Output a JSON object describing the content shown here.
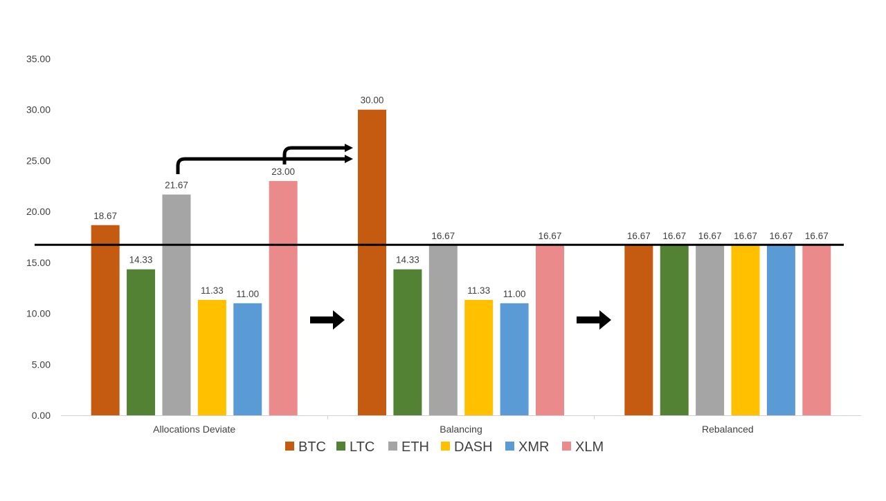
{
  "chart_data": {
    "type": "bar",
    "categories": [
      "Allocations Deviate",
      "Balancing",
      "Rebalanced"
    ],
    "series": [
      {
        "name": "BTC",
        "color": "#C55A11",
        "values": [
          18.67,
          30.0,
          16.67
        ]
      },
      {
        "name": "LTC",
        "color": "#548235",
        "values": [
          14.33,
          14.33,
          16.67
        ]
      },
      {
        "name": "ETH",
        "color": "#A5A5A5",
        "values": [
          21.67,
          16.67,
          16.67
        ]
      },
      {
        "name": "DASH",
        "color": "#FFC000",
        "values": [
          11.33,
          11.33,
          16.67
        ]
      },
      {
        "name": "XMR",
        "color": "#5B9BD5",
        "values": [
          11.0,
          11.0,
          16.67
        ]
      },
      {
        "name": "XLM",
        "color": "#EA8A8A",
        "values": [
          23.0,
          16.67,
          16.67
        ]
      }
    ],
    "ylim": [
      0,
      35
    ],
    "yticks": [
      "0.00",
      "5.00",
      "10.00",
      "15.00",
      "20.00",
      "25.00",
      "30.00",
      "35.00"
    ],
    "target_line": 16.67,
    "grid": false,
    "legend_position": "bottom",
    "data_labels": true,
    "annotations": {
      "transfer_arrows": "ETH and XLM excess moved to BTC",
      "stage_arrows": 2
    }
  }
}
